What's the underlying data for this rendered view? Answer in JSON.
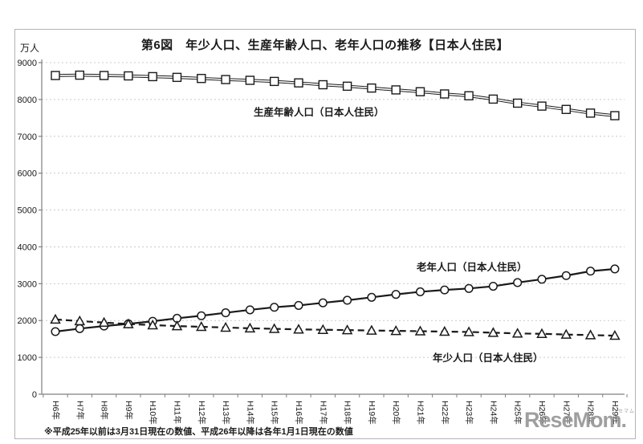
{
  "chart_data": {
    "type": "line",
    "title": "第6図　年少人口、生産年齢人口、老年人口の推移【日本人住民】",
    "unit_label": "万人",
    "footnote": "※平成25年以前は3月31日現在の数値、平成26年以降は各年1月1日現在の数値",
    "categories": [
      "H6年",
      "H7年",
      "H8年",
      "H9年",
      "H10年",
      "H11年",
      "H12年",
      "H13年",
      "H14年",
      "H15年",
      "H16年",
      "H17年",
      "H18年",
      "H19年",
      "H20年",
      "H21年",
      "H22年",
      "H23年",
      "H24年",
      "H25年",
      "H26年",
      "H27年",
      "H28年",
      "H29年"
    ],
    "ylim": [
      0,
      9000
    ],
    "y_ticks": [
      0,
      1000,
      2000,
      3000,
      4000,
      5000,
      6000,
      7000,
      8000,
      9000
    ],
    "grid": "horizontal-dashed",
    "legend_position": "inline-labels",
    "series": [
      {
        "name": "生産年齢人口（日本人住民）",
        "marker": "square",
        "line": "double-solid",
        "values": [
          8650,
          8660,
          8650,
          8640,
          8620,
          8600,
          8570,
          8540,
          8520,
          8490,
          8450,
          8400,
          8360,
          8310,
          8260,
          8210,
          8150,
          8100,
          8010,
          7900,
          7820,
          7730,
          7630,
          7560
        ]
      },
      {
        "name": "老年人口（日本人住民）",
        "marker": "circle",
        "line": "solid",
        "values": [
          1700,
          1780,
          1850,
          1910,
          1980,
          2060,
          2130,
          2210,
          2290,
          2360,
          2410,
          2480,
          2550,
          2630,
          2710,
          2780,
          2830,
          2870,
          2930,
          3030,
          3120,
          3220,
          3340,
          3400
        ]
      },
      {
        "name": "年少人口（日本人住民）",
        "marker": "triangle",
        "line": "dashed",
        "values": [
          2030,
          1985,
          1945,
          1905,
          1875,
          1850,
          1830,
          1810,
          1790,
          1775,
          1760,
          1750,
          1740,
          1730,
          1720,
          1710,
          1700,
          1690,
          1670,
          1650,
          1640,
          1620,
          1605,
          1590
        ]
      }
    ],
    "colors": {
      "line": "#1a1a1a",
      "marker_fill": "#ffffff",
      "grid": "#c9c9c9",
      "axis": "#808080",
      "text": "#1a1a1a"
    }
  },
  "watermark": {
    "text": "ReseMom.",
    "ruby": "リセマム",
    "color": "#979797"
  }
}
